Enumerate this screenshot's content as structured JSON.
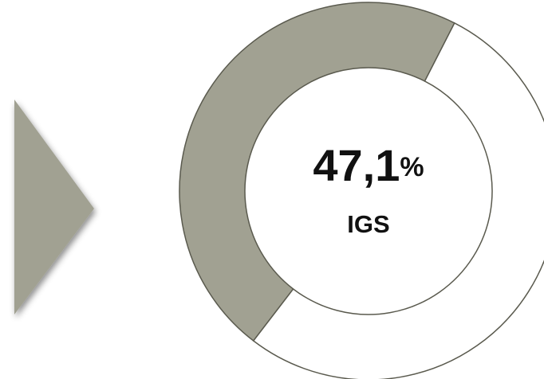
{
  "chart_data": {
    "type": "donut",
    "categories": [
      "IGS",
      null
    ],
    "values": [
      47.1,
      52.9
    ],
    "value_labels": [
      "47,1%",
      null
    ],
    "colors": [
      "#a1a192",
      "#ffffff"
    ],
    "start_angle": 217.5,
    "direction": "clockwise"
  }
}
